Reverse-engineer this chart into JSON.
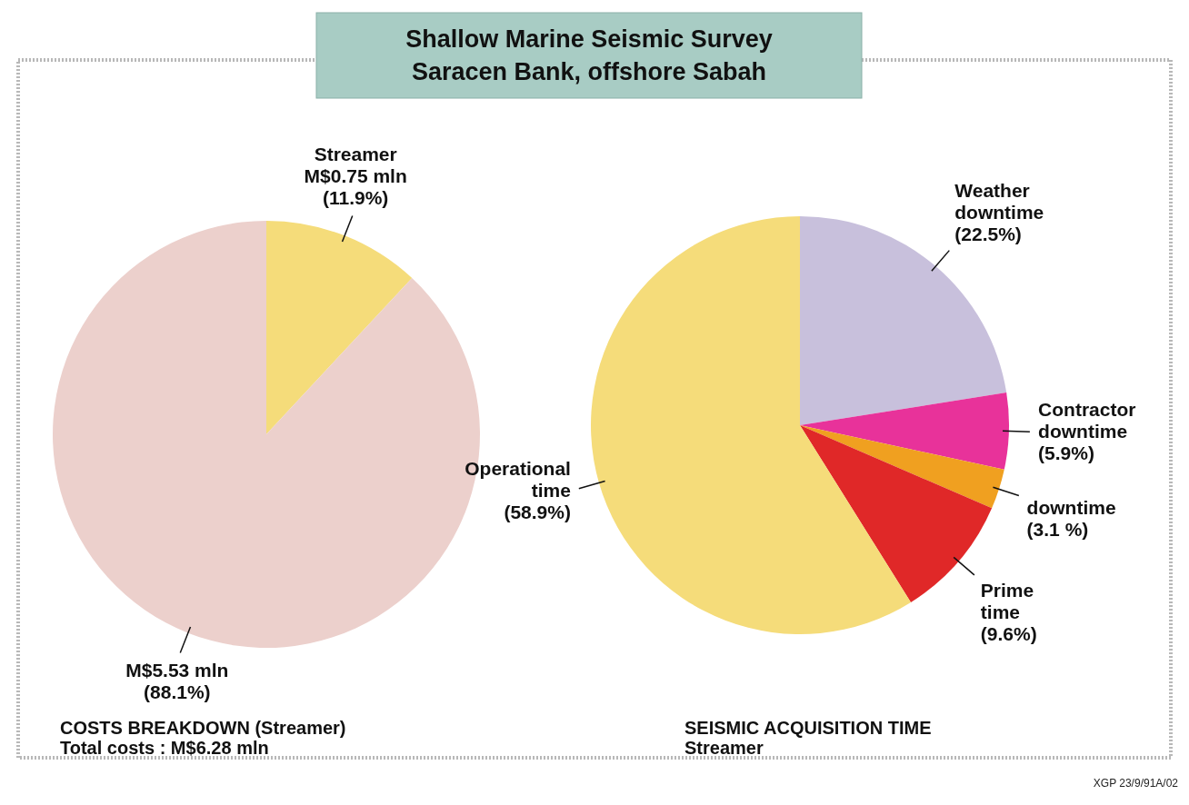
{
  "chart_data": [
    {
      "type": "other",
      "title": "Shallow Marine Seismic Survey",
      "subtitle": "Saracen Bank, offshore Sabah",
      "annotations": [
        "XGP 23/9/91A/02"
      ]
    },
    {
      "type": "pie",
      "title": "COSTS BREAKDOWN (Streamer)",
      "subtitle": "Total costs : M$6.28 mln",
      "categories": [
        "Streamer",
        null
      ],
      "values": [
        0.75,
        5.53
      ],
      "value_labels": [
        "M$0.75 mln (11.9%)",
        "M$5.53 mln (88.1%)"
      ],
      "colors": [
        "#f5dc7a",
        "#ecd0cc"
      ]
    },
    {
      "type": "pie",
      "title": "SEISMIC ACQUISITION TIME",
      "subtitle": "Streamer",
      "categories": [
        "Weather downtime",
        "Contractor downtime",
        "downtime",
        "Prime time",
        "Operational time"
      ],
      "values": [
        22.5,
        5.9,
        3.1,
        9.6,
        58.9
      ],
      "value_labels": [
        "(22.5%)",
        "(5.9%)",
        "(3.1 %)",
        "(9.6%)",
        "(58.9%)"
      ],
      "colors": [
        "#c8c0dc",
        "#e8329a",
        "#f0a020",
        "#e02828",
        "#f5dc7a"
      ]
    }
  ]
}
